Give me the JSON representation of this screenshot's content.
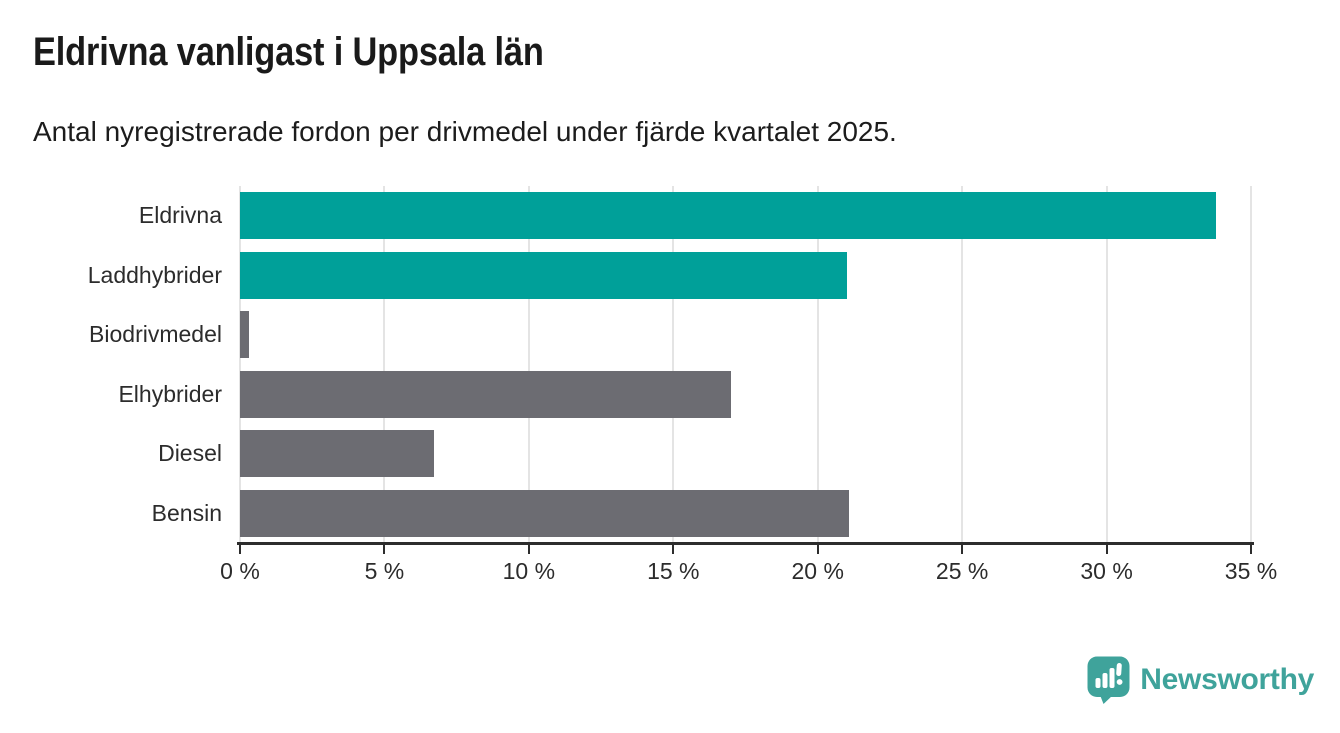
{
  "header": {
    "title": "Eldrivna vanligast i Uppsala län",
    "subtitle": "Antal nyregistrerade fordon per drivmedel under fjärde kvartalet 2025."
  },
  "chart_data": {
    "type": "bar",
    "orientation": "horizontal",
    "title": "Eldrivna vanligast i Uppsala län",
    "subtitle": "Antal nyregistrerade fordon per drivmedel under fjärde kvartalet 2025.",
    "categories": [
      "Eldrivna",
      "Laddhybrider",
      "Biodrivmedel",
      "Elhybrider",
      "Diesel",
      "Bensin"
    ],
    "values": [
      33.8,
      21.0,
      0.3,
      17.0,
      6.7,
      21.1
    ],
    "unit": "%",
    "xlim": [
      0,
      35
    ],
    "xticks": [
      0,
      5,
      10,
      15,
      20,
      25,
      30,
      35
    ],
    "xtick_labels": [
      "0 %",
      "5 %",
      "10 %",
      "15 %",
      "20 %",
      "25 %",
      "30 %",
      "35 %"
    ],
    "grid": true,
    "legend": "none",
    "bar_colors": [
      "#00a099",
      "#00a099",
      "#6c6c72",
      "#6c6c72",
      "#6c6c72",
      "#6c6c72"
    ],
    "highlight_color": "#00a099",
    "default_color": "#6c6c72"
  },
  "footer": {
    "brand": "Newsworthy",
    "brand_color": "#3fa39b",
    "logo_icon": "newsworthy-speech-bubble-barchart-icon"
  }
}
